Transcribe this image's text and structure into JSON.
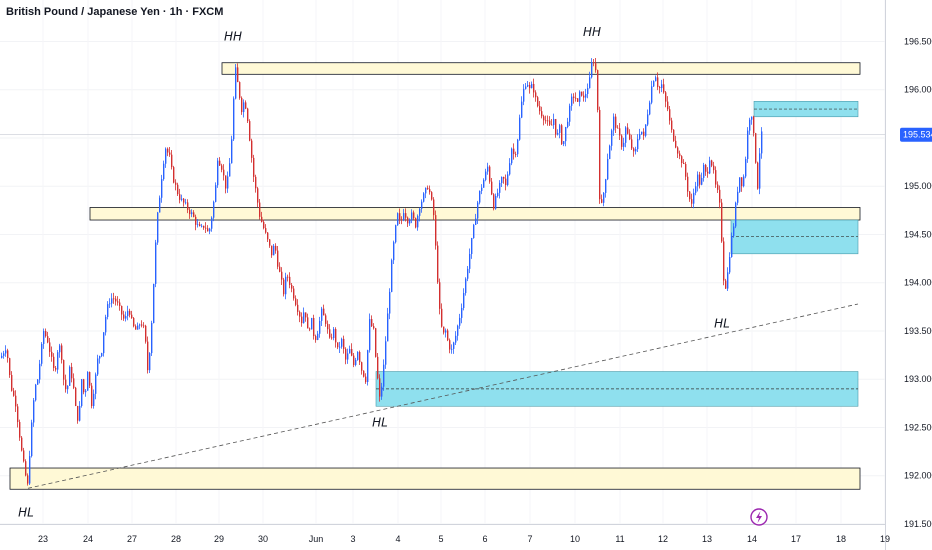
{
  "header": {
    "title": "British Pound / Japanese Yen · 1h · FXCM"
  },
  "colors": {
    "up": "#2962ff",
    "down": "#d32f2f",
    "supply_zone": "#fff9d6",
    "zone_border": "#131722",
    "demand_zone": "#8fe0ee",
    "demand_border": "#4a9aaa",
    "price_label": "#2962ff"
  },
  "chart_data": {
    "type": "candlestick",
    "title": "British Pound / Japanese Yen · 1h · FXCM",
    "ylim": [
      191.5,
      196.93
    ],
    "x_ticks": [
      "23",
      "24",
      "27",
      "28",
      "29",
      "30",
      "Jun",
      "3",
      "4",
      "5",
      "6",
      "7",
      "10",
      "11",
      "12",
      "13",
      "14",
      "17",
      "18",
      "19"
    ],
    "y_ticks": [
      "196.500",
      "196.000",
      "195.500",
      "195.000",
      "194.500",
      "194.000",
      "193.500",
      "193.000",
      "192.500",
      "192.000",
      "191.500"
    ],
    "current_price": "195.534",
    "path_points": [
      [
        0,
        193.2
      ],
      [
        7,
        193.35
      ],
      [
        9,
        193.1
      ],
      [
        12,
        192.9
      ],
      [
        16,
        192.75
      ],
      [
        19,
        192.5
      ],
      [
        22,
        192.25
      ],
      [
        25,
        192.05
      ],
      [
        28,
        191.9
      ],
      [
        31,
        192.4
      ],
      [
        35,
        192.9
      ],
      [
        38,
        193.0
      ],
      [
        41,
        193.25
      ],
      [
        44,
        193.5
      ],
      [
        48,
        193.4
      ],
      [
        52,
        193.2
      ],
      [
        55,
        193.05
      ],
      [
        58,
        193.3
      ],
      [
        61,
        193.35
      ],
      [
        64,
        193.0
      ],
      [
        67,
        192.85
      ],
      [
        70,
        193.1
      ],
      [
        73,
        193.0
      ],
      [
        76,
        192.7
      ],
      [
        79,
        192.55
      ],
      [
        82,
        193.0
      ],
      [
        85,
        192.8
      ],
      [
        88,
        193.1
      ],
      [
        92,
        192.75
      ],
      [
        95,
        192.95
      ],
      [
        98,
        193.2
      ],
      [
        102,
        193.3
      ],
      [
        105,
        193.6
      ],
      [
        109,
        193.8
      ],
      [
        113,
        193.85
      ],
      [
        117,
        193.8
      ],
      [
        121,
        193.7
      ],
      [
        125,
        193.6
      ],
      [
        129,
        193.75
      ],
      [
        133,
        193.55
      ],
      [
        137,
        193.5
      ],
      [
        141,
        193.6
      ],
      [
        145,
        193.5
      ],
      [
        148,
        193.1
      ],
      [
        151,
        193.4
      ],
      [
        154,
        194.0
      ],
      [
        157,
        194.6
      ],
      [
        160,
        194.9
      ],
      [
        163,
        195.2
      ],
      [
        166,
        195.4
      ],
      [
        170,
        195.3
      ],
      [
        173,
        195.1
      ],
      [
        176,
        195.0
      ],
      [
        179,
        194.9
      ],
      [
        182,
        194.85
      ],
      [
        186,
        194.8
      ],
      [
        189,
        194.75
      ],
      [
        193,
        194.7
      ],
      [
        197,
        194.6
      ],
      [
        201,
        194.55
      ],
      [
        205,
        194.6
      ],
      [
        209,
        194.5
      ],
      [
        213,
        194.75
      ],
      [
        216,
        195.0
      ],
      [
        218,
        195.3
      ],
      [
        222,
        195.2
      ],
      [
        226,
        195.0
      ],
      [
        229,
        195.1
      ],
      [
        232,
        195.5
      ],
      [
        234,
        195.9
      ],
      [
        236,
        196.2
      ],
      [
        239,
        196.0
      ],
      [
        242,
        195.8
      ],
      [
        245,
        195.9
      ],
      [
        248,
        195.7
      ],
      [
        251,
        195.4
      ],
      [
        254,
        195.1
      ],
      [
        257,
        194.9
      ],
      [
        260,
        194.7
      ],
      [
        263,
        194.6
      ],
      [
        266,
        194.5
      ],
      [
        269,
        194.4
      ],
      [
        272,
        194.3
      ],
      [
        275,
        194.4
      ],
      [
        278,
        194.2
      ],
      [
        281,
        194.05
      ],
      [
        284,
        193.9
      ],
      [
        287,
        194.1
      ],
      [
        290,
        194.0
      ],
      [
        293,
        193.9
      ],
      [
        296,
        193.8
      ],
      [
        299,
        193.7
      ],
      [
        302,
        193.6
      ],
      [
        305,
        193.75
      ],
      [
        308,
        193.5
      ],
      [
        312,
        193.6
      ],
      [
        315,
        193.4
      ],
      [
        318,
        193.5
      ],
      [
        322,
        193.7
      ],
      [
        326,
        193.6
      ],
      [
        330,
        193.4
      ],
      [
        334,
        193.5
      ],
      [
        338,
        193.3
      ],
      [
        342,
        193.4
      ],
      [
        346,
        193.2
      ],
      [
        350,
        193.3
      ],
      [
        354,
        193.15
      ],
      [
        358,
        193.3
      ],
      [
        362,
        193.1
      ],
      [
        366,
        193.0
      ],
      [
        370,
        193.6
      ],
      [
        374,
        193.5
      ],
      [
        377,
        193.1
      ],
      [
        380,
        192.8
      ],
      [
        383,
        193.0
      ],
      [
        386,
        193.4
      ],
      [
        389,
        193.8
      ],
      [
        392,
        194.2
      ],
      [
        395,
        194.5
      ],
      [
        398,
        194.7
      ],
      [
        401,
        194.6
      ],
      [
        404,
        194.75
      ],
      [
        408,
        194.65
      ],
      [
        412,
        194.7
      ],
      [
        416,
        194.6
      ],
      [
        420,
        194.8
      ],
      [
        424,
        194.9
      ],
      [
        428,
        195.0
      ],
      [
        431,
        194.9
      ],
      [
        434,
        194.7
      ],
      [
        437,
        194.2
      ],
      [
        440,
        193.7
      ],
      [
        443,
        193.45
      ],
      [
        446,
        193.5
      ],
      [
        449,
        193.35
      ],
      [
        452,
        193.3
      ],
      [
        455,
        193.4
      ],
      [
        458,
        193.55
      ],
      [
        461,
        193.7
      ],
      [
        464,
        193.9
      ],
      [
        467,
        194.1
      ],
      [
        470,
        194.3
      ],
      [
        473,
        194.5
      ],
      [
        476,
        194.7
      ],
      [
        479,
        194.9
      ],
      [
        482,
        195.0
      ],
      [
        485,
        195.1
      ],
      [
        488,
        195.2
      ],
      [
        491,
        195.0
      ],
      [
        494,
        194.8
      ],
      [
        497,
        194.9
      ],
      [
        500,
        195.0
      ],
      [
        503,
        195.1
      ],
      [
        506,
        195.0
      ],
      [
        509,
        195.2
      ],
      [
        512,
        195.4
      ],
      [
        515,
        195.3
      ],
      [
        518,
        195.5
      ],
      [
        521,
        195.8
      ],
      [
        524,
        196.0
      ],
      [
        527,
        196.1
      ],
      [
        530,
        196.0
      ],
      [
        533,
        196.05
      ],
      [
        536,
        195.9
      ],
      [
        539,
        195.8
      ],
      [
        542,
        195.75
      ],
      [
        545,
        195.7
      ],
      [
        548,
        195.65
      ],
      [
        551,
        195.6
      ],
      [
        554,
        195.7
      ],
      [
        557,
        195.5
      ],
      [
        560,
        195.6
      ],
      [
        563,
        195.4
      ],
      [
        566,
        195.6
      ],
      [
        569,
        195.75
      ],
      [
        572,
        195.9
      ],
      [
        575,
        195.95
      ],
      [
        578,
        195.85
      ],
      [
        581,
        196.0
      ],
      [
        584,
        195.9
      ],
      [
        587,
        196.0
      ],
      [
        590,
        196.1
      ],
      [
        593,
        196.35
      ],
      [
        596,
        196.2
      ],
      [
        598,
        195.8
      ],
      [
        600,
        194.9
      ],
      [
        602,
        194.8
      ],
      [
        605,
        195.0
      ],
      [
        608,
        195.3
      ],
      [
        611,
        195.5
      ],
      [
        614,
        195.7
      ],
      [
        617,
        195.6
      ],
      [
        620,
        195.5
      ],
      [
        623,
        195.4
      ],
      [
        626,
        195.6
      ],
      [
        629,
        195.5
      ],
      [
        632,
        195.4
      ],
      [
        635,
        195.3
      ],
      [
        638,
        195.5
      ],
      [
        641,
        195.6
      ],
      [
        644,
        195.5
      ],
      [
        647,
        195.7
      ],
      [
        650,
        195.9
      ],
      [
        653,
        196.1
      ],
      [
        656,
        196.15
      ],
      [
        659,
        196.0
      ],
      [
        662,
        196.05
      ],
      [
        665,
        195.9
      ],
      [
        668,
        195.8
      ],
      [
        671,
        195.6
      ],
      [
        674,
        195.5
      ],
      [
        677,
        195.4
      ],
      [
        680,
        195.3
      ],
      [
        683,
        195.25
      ],
      [
        686,
        195.1
      ],
      [
        689,
        194.9
      ],
      [
        692,
        194.8
      ],
      [
        695,
        195.0
      ],
      [
        698,
        195.1
      ],
      [
        701,
        195.0
      ],
      [
        704,
        195.2
      ],
      [
        707,
        195.1
      ],
      [
        710,
        195.3
      ],
      [
        713,
        195.2
      ],
      [
        716,
        195.0
      ],
      [
        719,
        194.9
      ],
      [
        721,
        194.7
      ],
      [
        723,
        194.2
      ],
      [
        725,
        193.9
      ],
      [
        728,
        194.1
      ],
      [
        731,
        194.4
      ],
      [
        734,
        194.6
      ],
      [
        737,
        194.9
      ],
      [
        740,
        195.1
      ],
      [
        743,
        195.0
      ],
      [
        746,
        195.3
      ],
      [
        749,
        195.7
      ],
      [
        752,
        195.75
      ],
      [
        755,
        195.4
      ],
      [
        758,
        195.0
      ],
      [
        761,
        195.534
      ]
    ],
    "zones": [
      {
        "kind": "supply",
        "x1": 222,
        "x2": 860,
        "top": 196.28,
        "bottom": 196.16
      },
      {
        "kind": "supply",
        "x1": 90,
        "x2": 860,
        "top": 194.78,
        "bottom": 194.65
      },
      {
        "kind": "supply",
        "x1": 10,
        "x2": 860,
        "top": 192.08,
        "bottom": 191.86
      },
      {
        "kind": "demand",
        "x1": 754,
        "x2": 858,
        "top": 195.88,
        "bottom": 195.72,
        "mid": 195.8
      },
      {
        "kind": "demand",
        "x1": 731,
        "x2": 858,
        "top": 194.65,
        "bottom": 194.3,
        "mid": 194.48
      },
      {
        "kind": "demand",
        "x1": 376,
        "x2": 858,
        "top": 193.08,
        "bottom": 192.72,
        "mid": 192.9
      }
    ],
    "trendline": {
      "x1": 28,
      "y1": 191.87,
      "x2": 858,
      "y2": 193.78
    },
    "annotations": [
      {
        "label": "HH",
        "x": 233,
        "price": 196.55
      },
      {
        "label": "HH",
        "x": 592,
        "price": 196.6
      },
      {
        "label": "HL",
        "x": 26,
        "price": 191.62
      },
      {
        "label": "HL",
        "x": 380,
        "price": 192.55
      },
      {
        "label": "HL",
        "x": 722,
        "price": 193.58
      }
    ]
  }
}
